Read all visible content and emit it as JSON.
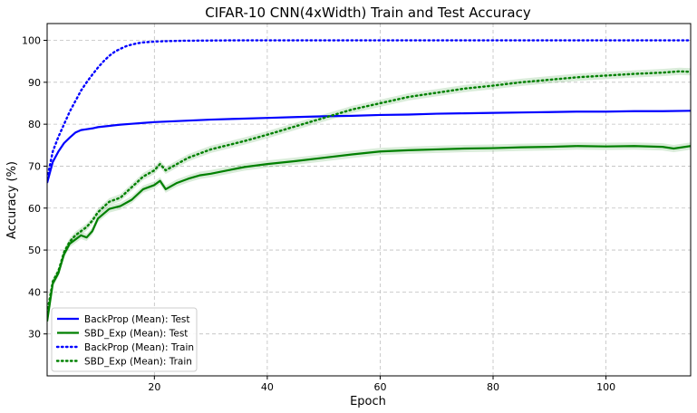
{
  "chart_data": {
    "type": "line",
    "title": "CIFAR-10 CNN(4xWidth) Train and Test Accuracy",
    "xlabel": "Epoch",
    "ylabel": "Accuracy (%)",
    "xlim": [
      1,
      115
    ],
    "ylim": [
      20,
      104
    ],
    "xticks": [
      20,
      40,
      60,
      80,
      100
    ],
    "yticks": [
      30,
      40,
      50,
      60,
      70,
      80,
      90,
      100
    ],
    "grid": true,
    "legend_position": "lower-left",
    "series": [
      {
        "name": "BackProp (Mean): Test",
        "color": "#0000ff",
        "style": "solid",
        "x": [
          1,
          2,
          3,
          4,
          5,
          6,
          7,
          8,
          9,
          10,
          12,
          14,
          16,
          18,
          20,
          25,
          30,
          35,
          40,
          45,
          50,
          55,
          60,
          65,
          70,
          75,
          80,
          85,
          90,
          95,
          100,
          105,
          110,
          115
        ],
        "y": [
          66.0,
          71.0,
          73.5,
          75.5,
          76.8,
          78.0,
          78.6,
          78.8,
          79.0,
          79.3,
          79.6,
          79.9,
          80.1,
          80.3,
          80.5,
          80.8,
          81.1,
          81.3,
          81.5,
          81.7,
          81.9,
          82.0,
          82.2,
          82.3,
          82.5,
          82.6,
          82.7,
          82.8,
          82.9,
          83.0,
          83.0,
          83.1,
          83.1,
          83.2
        ]
      },
      {
        "name": "SBD_Exp (Mean): Test",
        "color": "#008000",
        "style": "solid",
        "x": [
          1,
          2,
          3,
          4,
          5,
          6,
          7,
          8,
          9,
          10,
          12,
          14,
          16,
          18,
          20,
          21,
          22,
          24,
          26,
          28,
          30,
          33,
          36,
          40,
          45,
          50,
          55,
          60,
          65,
          70,
          75,
          80,
          85,
          90,
          95,
          100,
          105,
          110,
          112,
          115
        ],
        "y": [
          33.0,
          42.0,
          44.5,
          49.0,
          51.5,
          52.5,
          53.5,
          53.0,
          54.5,
          57.5,
          59.8,
          60.5,
          62.0,
          64.5,
          65.5,
          66.5,
          64.5,
          66.0,
          67.0,
          67.8,
          68.2,
          69.0,
          69.8,
          70.5,
          71.2,
          72.0,
          72.8,
          73.5,
          73.8,
          74.0,
          74.2,
          74.3,
          74.5,
          74.6,
          74.8,
          74.7,
          74.8,
          74.6,
          74.2,
          74.8
        ]
      },
      {
        "name": "BackProp (Mean): Train",
        "color": "#0000ff",
        "style": "dotted",
        "x": [
          1,
          2,
          3,
          4,
          5,
          6,
          7,
          8,
          9,
          10,
          11,
          12,
          13,
          14,
          15,
          16,
          17,
          18,
          20,
          22,
          25,
          30,
          35,
          40,
          50,
          60,
          70,
          80,
          90,
          100,
          110,
          115
        ],
        "y": [
          67.0,
          73.5,
          77.0,
          80.0,
          83.0,
          85.5,
          88.0,
          90.0,
          91.8,
          93.5,
          95.0,
          96.3,
          97.3,
          98.0,
          98.6,
          99.0,
          99.3,
          99.5,
          99.7,
          99.8,
          99.9,
          99.95,
          100.0,
          100.0,
          100.0,
          100.0,
          100.0,
          100.0,
          100.0,
          100.0,
          100.0,
          100.0
        ]
      },
      {
        "name": "SBD_Exp (Mean): Train",
        "color": "#008000",
        "style": "dotted",
        "x": [
          1,
          2,
          3,
          4,
          5,
          6,
          7,
          8,
          9,
          10,
          12,
          14,
          16,
          18,
          20,
          21,
          22,
          24,
          26,
          28,
          30,
          33,
          36,
          40,
          45,
          50,
          55,
          60,
          65,
          70,
          75,
          80,
          85,
          90,
          95,
          100,
          105,
          110,
          113,
          115
        ],
        "y": [
          35.0,
          42.5,
          45.0,
          49.5,
          52.0,
          53.5,
          54.5,
          55.5,
          57.0,
          59.0,
          61.5,
          62.5,
          65.0,
          67.5,
          69.0,
          70.5,
          69.0,
          70.5,
          72.0,
          73.0,
          74.0,
          75.0,
          76.0,
          77.5,
          79.5,
          81.5,
          83.5,
          85.0,
          86.5,
          87.5,
          88.5,
          89.2,
          90.0,
          90.6,
          91.2,
          91.6,
          92.0,
          92.3,
          92.6,
          92.5
        ]
      }
    ]
  }
}
